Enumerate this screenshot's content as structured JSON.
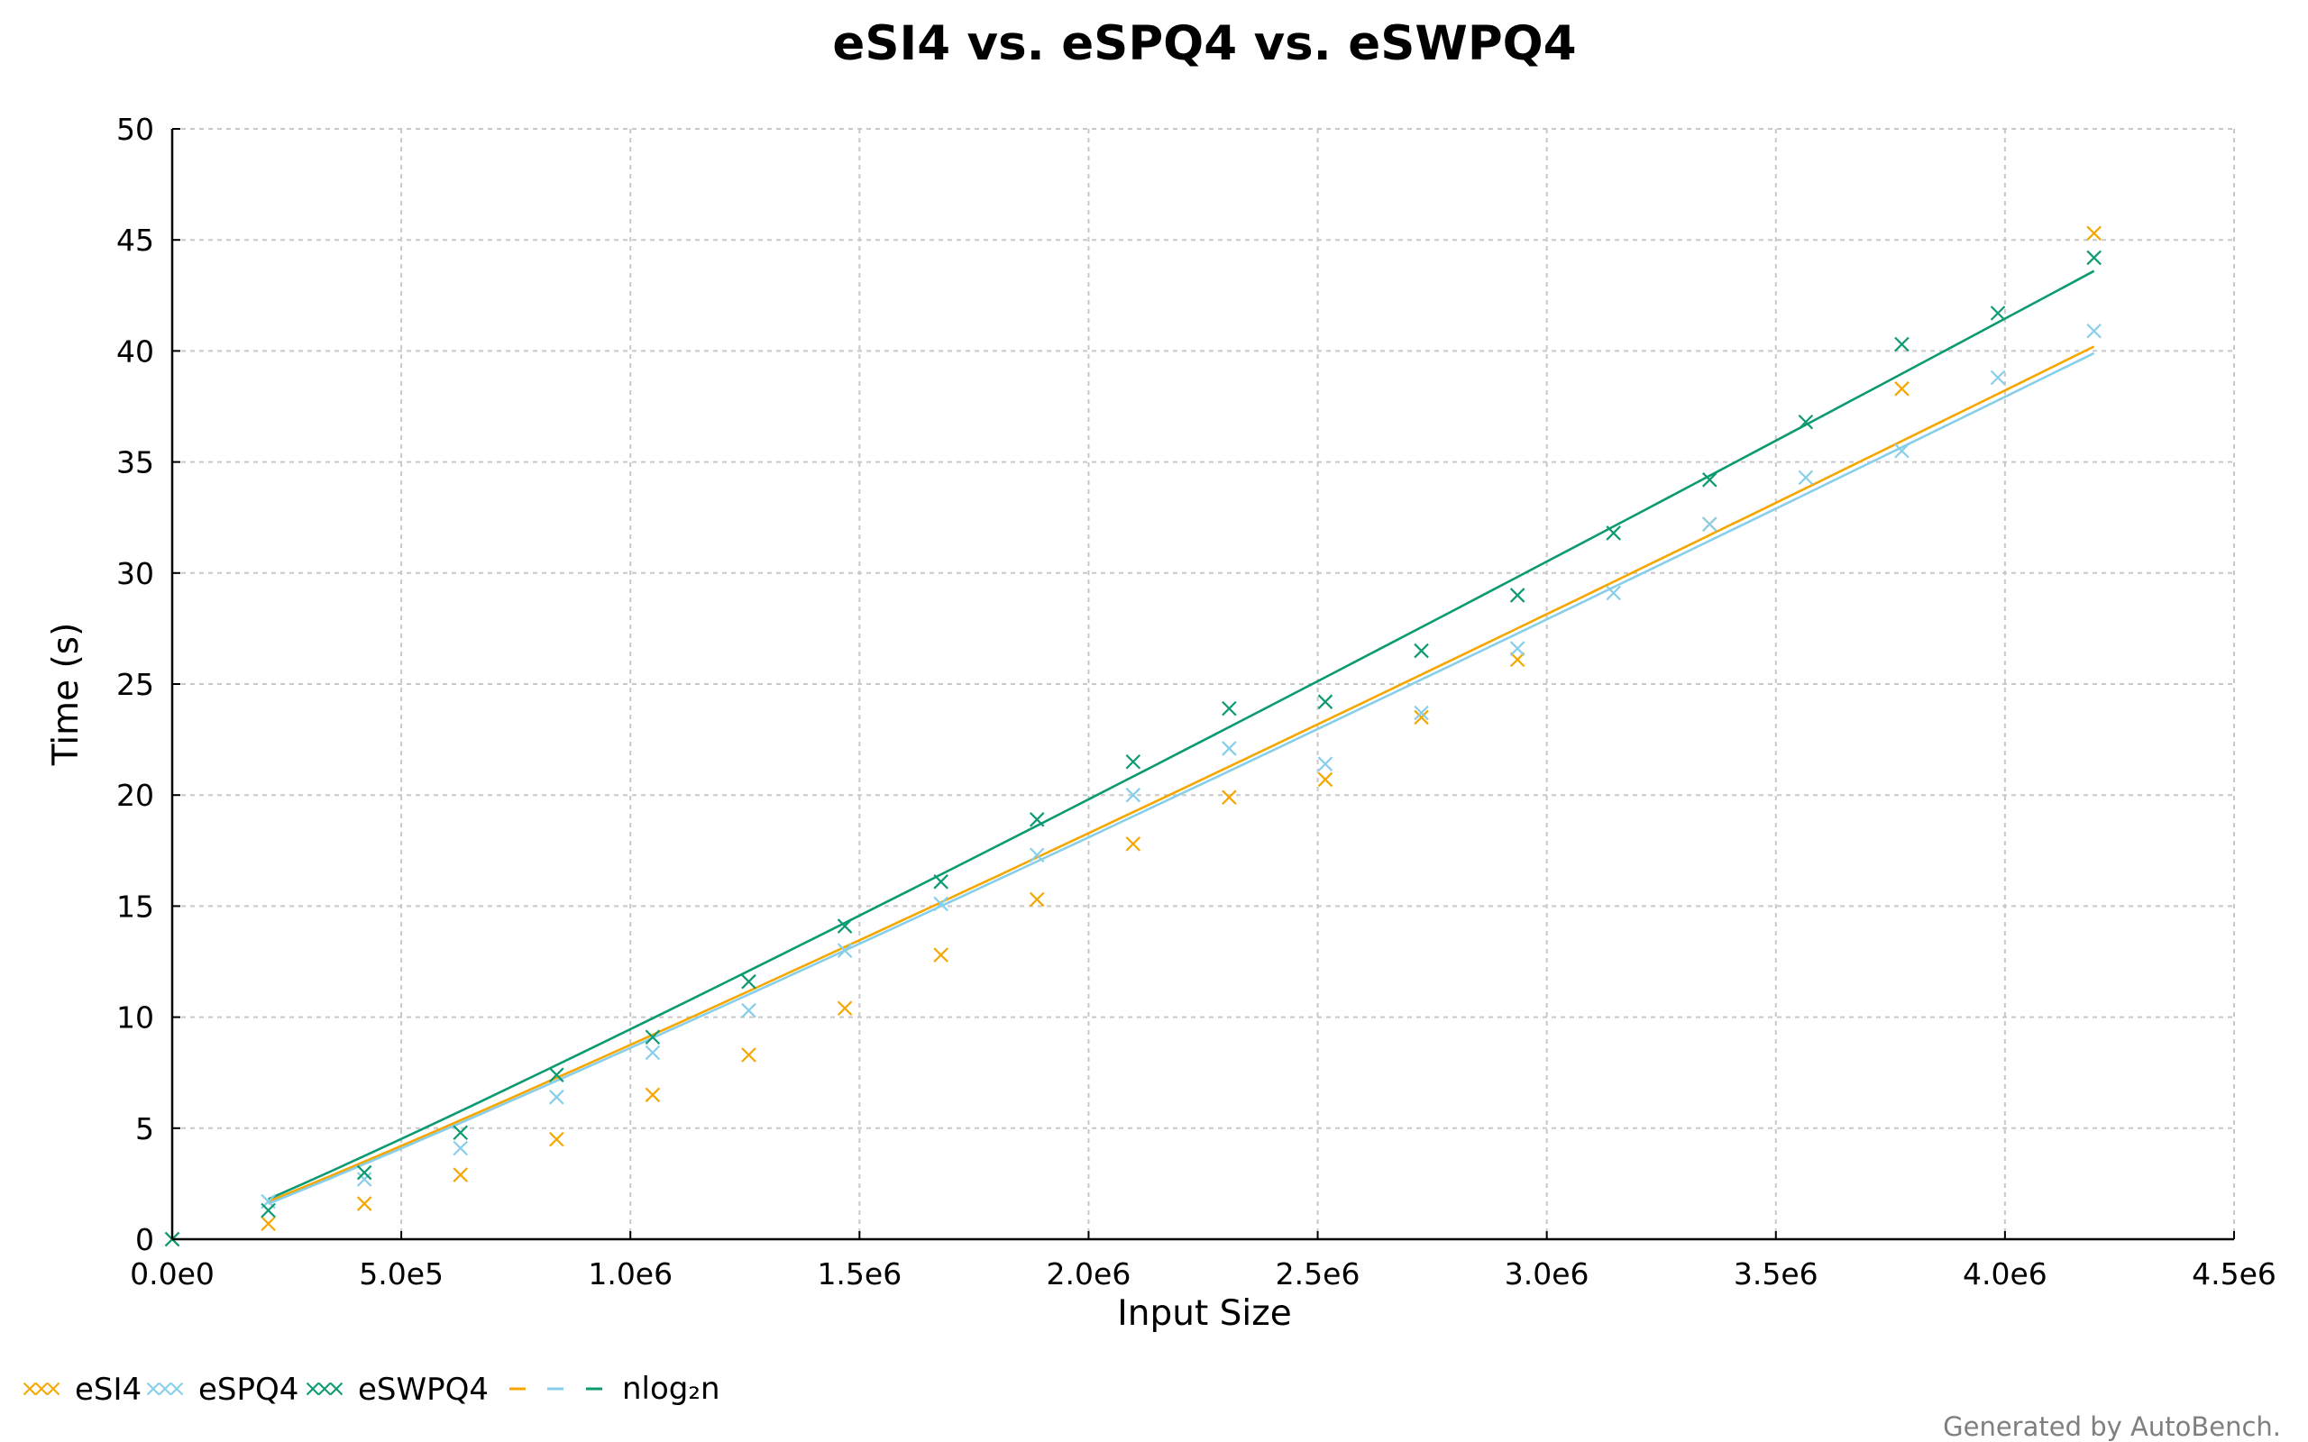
{
  "credit": "Generated by AutoBench.",
  "chart_data": {
    "type": "scatter",
    "title": "eSI4 vs. eSPQ4 vs. eSWPQ4",
    "xlabel": "Input Size",
    "ylabel": "Time (s)",
    "xlim": [
      0,
      4500000
    ],
    "ylim": [
      0,
      50
    ],
    "x_ticks": [
      {
        "value": 0,
        "label": "0.0e0"
      },
      {
        "value": 500000,
        "label": "5.0e5"
      },
      {
        "value": 1000000,
        "label": "1.0e6"
      },
      {
        "value": 1500000,
        "label": "1.5e6"
      },
      {
        "value": 2000000,
        "label": "2.0e6"
      },
      {
        "value": 2500000,
        "label": "2.5e6"
      },
      {
        "value": 3000000,
        "label": "3.0e6"
      },
      {
        "value": 3500000,
        "label": "3.5e6"
      },
      {
        "value": 4000000,
        "label": "4.0e6"
      },
      {
        "value": 4500000,
        "label": "4.5e6"
      }
    ],
    "y_ticks": [
      {
        "value": 0,
        "label": "0"
      },
      {
        "value": 5,
        "label": "5"
      },
      {
        "value": 10,
        "label": "10"
      },
      {
        "value": 15,
        "label": "15"
      },
      {
        "value": 20,
        "label": "20"
      },
      {
        "value": 25,
        "label": "25"
      },
      {
        "value": 30,
        "label": "30"
      },
      {
        "value": 35,
        "label": "35"
      },
      {
        "value": 40,
        "label": "40"
      },
      {
        "value": 45,
        "label": "45"
      },
      {
        "value": 50,
        "label": "50"
      }
    ],
    "grid": true,
    "legend_position": "bottom-left",
    "fit_label": "nlog₂n",
    "x": [
      0,
      209715,
      419430,
      629145,
      838860,
      1048576,
      1258291,
      1468006,
      1677721,
      1887436,
      2097152,
      2306867,
      2516582,
      2726297,
      2936012,
      3145728,
      3355443,
      3565158,
      3774873,
      3984588,
      4194304
    ],
    "series": [
      {
        "name": "eSI4",
        "color": "#f5a700",
        "marker": "x",
        "values": [
          0,
          0.7,
          1.6,
          2.9,
          4.5,
          6.5,
          8.3,
          10.4,
          12.8,
          15.3,
          17.8,
          19.9,
          20.7,
          23.5,
          26.1,
          null,
          32.2,
          null,
          38.3,
          null,
          45.3
        ],
        "fit": [
          [
            209715,
            1.7
          ],
          [
            4194304,
            40.2
          ]
        ]
      },
      {
        "name": "eSPQ4",
        "color": "#87ceea",
        "marker": "x",
        "values": [
          0,
          1.7,
          2.7,
          4.1,
          6.4,
          8.4,
          10.3,
          13.0,
          15.1,
          17.3,
          20.0,
          22.1,
          21.4,
          23.7,
          26.6,
          29.1,
          32.2,
          34.3,
          35.5,
          38.8,
          40.9
        ],
        "fit": [
          [
            209715,
            1.6
          ],
          [
            4194304,
            39.9
          ]
        ]
      },
      {
        "name": "eSWPQ4",
        "color": "#0c9a72",
        "marker": "x",
        "values": [
          0,
          1.3,
          3.0,
          4.8,
          7.4,
          9.1,
          11.6,
          14.1,
          16.1,
          18.9,
          21.5,
          23.9,
          24.2,
          26.5,
          29.0,
          31.8,
          34.2,
          36.8,
          40.3,
          41.7,
          44.2
        ],
        "fit": [
          [
            209715,
            1.8
          ],
          [
            4194304,
            43.6
          ]
        ]
      }
    ]
  }
}
